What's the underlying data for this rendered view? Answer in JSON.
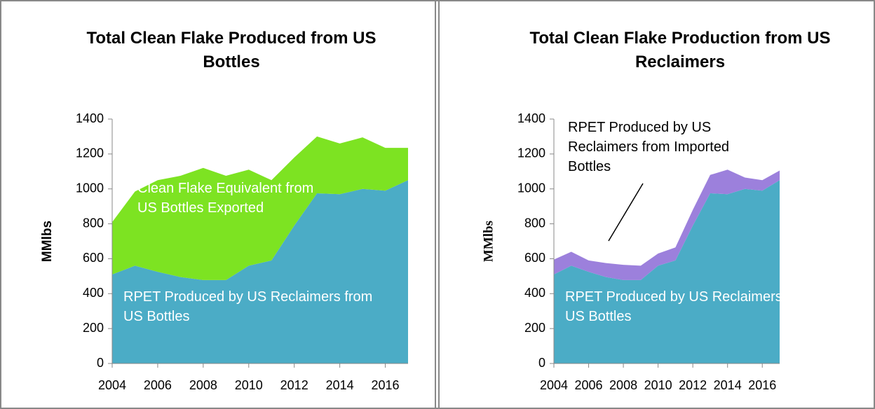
{
  "chart_data": [
    {
      "type": "area",
      "title": "Total Clean Flake Produced from US Bottles",
      "y_label": "MMlbs",
      "x": [
        2004,
        2005,
        2006,
        2007,
        2008,
        2009,
        2010,
        2011,
        2012,
        2013,
        2014,
        2015,
        2016,
        2017
      ],
      "series": [
        {
          "name": "RPET Produced by US Reclaimers from US Bottles",
          "color": "#4bacc6",
          "values": [
            510,
            560,
            525,
            495,
            478,
            478,
            560,
            590,
            790,
            975,
            970,
            1000,
            990,
            1050
          ]
        },
        {
          "name": "Clean Flake Equivalent from US Bottles Exported",
          "color": "#7de322",
          "values": [
            300,
            425,
            525,
            580,
            642,
            597,
            550,
            460,
            390,
            325,
            290,
            295,
            245,
            185
          ]
        }
      ],
      "xlim": [
        2004,
        2017
      ],
      "xticks": [
        2004,
        2006,
        2008,
        2010,
        2012,
        2014,
        2016
      ],
      "ylim": [
        0,
        1400
      ],
      "yticks": [
        0,
        200,
        400,
        600,
        800,
        1000,
        1200,
        1400
      ]
    },
    {
      "type": "area",
      "title": "Total Clean Flake Production from US Reclaimers",
      "y_label": "MMlbs",
      "x": [
        2004,
        2005,
        2006,
        2007,
        2008,
        2009,
        2010,
        2011,
        2012,
        2013,
        2014,
        2015,
        2016,
        2017
      ],
      "series": [
        {
          "name": "RPET Produced by US Reclaimers from US Bottles",
          "color": "#4bacc6",
          "values": [
            510,
            560,
            525,
            495,
            478,
            478,
            560,
            590,
            790,
            975,
            970,
            1000,
            990,
            1050
          ]
        },
        {
          "name": "RPET Produced by US Reclaimers from Imported Bottles",
          "color": "#9c80dc",
          "values": [
            85,
            80,
            65,
            80,
            87,
            82,
            70,
            75,
            90,
            105,
            140,
            65,
            60,
            55
          ]
        }
      ],
      "xlim": [
        2004,
        2017
      ],
      "xticks": [
        2004,
        2006,
        2008,
        2010,
        2012,
        2014,
        2016
      ],
      "ylim": [
        0,
        1400
      ],
      "yticks": [
        0,
        200,
        400,
        600,
        800,
        1000,
        1200,
        1400
      ]
    }
  ]
}
